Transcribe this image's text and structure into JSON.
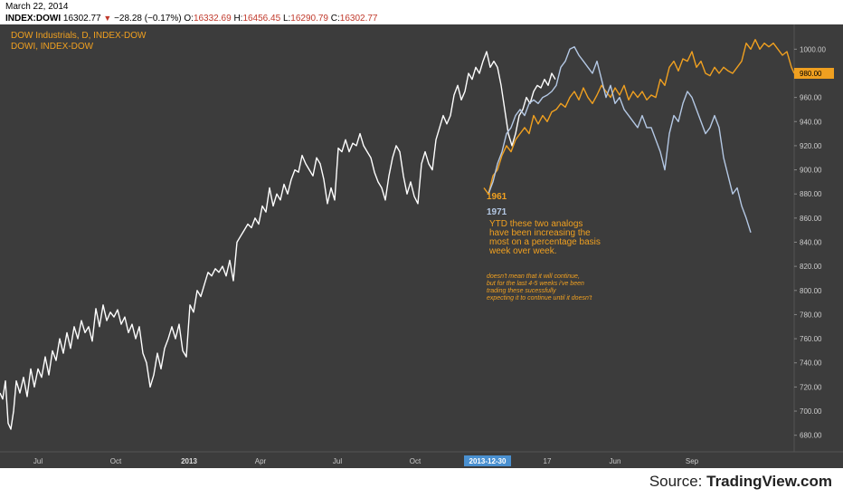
{
  "header": {
    "date": "March 22, 2014",
    "symbol": "INDEX:DOWI",
    "last": "16302.77",
    "change": "−28.28 (−0.17%)",
    "o_label": "O:",
    "o_value": "16332.69",
    "h_label": "H:",
    "h_value": "16456.45",
    "l_label": "L:",
    "l_value": "16290.79",
    "c_label": "C:",
    "c_value": "16302.77"
  },
  "legend": {
    "line1": "DOW Industrials, D, INDEX-DOW",
    "line2": "DOWI, INDEX-DOW"
  },
  "annotations": {
    "label_1961": "1961",
    "label_1971": "1971",
    "note1": [
      "YTD these two analogs",
      "have been increasing the",
      "most on a percentage basis",
      "week over week."
    ],
    "note2": [
      "doesn't mean that it will continue,",
      "but for the last 4-5 weeks i've been",
      "trading these sucessfully",
      "expecting it to continue until it doesn't"
    ]
  },
  "source": {
    "prefix": "Source: ",
    "brand": "TradingView.com"
  },
  "colors": {
    "background": "#3c3c3c",
    "main_series": "#ffffff",
    "series_1961": "#f0a020",
    "series_1971": "#b4c8e4",
    "axis_text": "#cccccc",
    "highlight": "#4a90d0"
  },
  "chart_data": {
    "type": "line",
    "ylim": [
      670,
      1010
    ],
    "y_ticks": [
      680,
      700,
      720,
      740,
      760,
      780,
      800,
      820,
      840,
      860,
      880,
      900,
      920,
      940,
      960,
      980,
      1000
    ],
    "x_ticks": [
      "Jul",
      "Oct",
      "2013",
      "Apr",
      "Jul",
      "Oct",
      "2013-12-30",
      "17",
      "Jun",
      "Sep"
    ],
    "x_ticks_bold": [
      "2013"
    ],
    "x_tick_highlight": "2013-12-30",
    "last_value_label": "980.00",
    "grid": false,
    "series": [
      {
        "name": "DOW Industrials",
        "points": [
          [
            0,
            715
          ],
          [
            3,
            710
          ],
          [
            6,
            725
          ],
          [
            9,
            690
          ],
          [
            12,
            685
          ],
          [
            15,
            700
          ],
          [
            18,
            725
          ],
          [
            22,
            715
          ],
          [
            26,
            728
          ],
          [
            30,
            712
          ],
          [
            34,
            735
          ],
          [
            38,
            720
          ],
          [
            42,
            735
          ],
          [
            46,
            728
          ],
          [
            50,
            745
          ],
          [
            54,
            730
          ],
          [
            58,
            750
          ],
          [
            62,
            742
          ],
          [
            66,
            760
          ],
          [
            70,
            748
          ],
          [
            74,
            765
          ],
          [
            78,
            752
          ],
          [
            82,
            770
          ],
          [
            86,
            760
          ],
          [
            90,
            775
          ],
          [
            94,
            765
          ],
          [
            98,
            770
          ],
          [
            102,
            758
          ],
          [
            106,
            785
          ],
          [
            110,
            770
          ],
          [
            114,
            788
          ],
          [
            118,
            775
          ],
          [
            122,
            782
          ],
          [
            126,
            778
          ],
          [
            130,
            784
          ],
          [
            134,
            772
          ],
          [
            138,
            778
          ],
          [
            142,
            765
          ],
          [
            146,
            772
          ],
          [
            150,
            760
          ],
          [
            154,
            770
          ],
          [
            158,
            748
          ],
          [
            162,
            740
          ],
          [
            166,
            720
          ],
          [
            170,
            730
          ],
          [
            174,
            748
          ],
          [
            178,
            735
          ],
          [
            182,
            752
          ],
          [
            186,
            760
          ],
          [
            190,
            770
          ],
          [
            194,
            760
          ],
          [
            198,
            772
          ],
          [
            202,
            750
          ],
          [
            206,
            745
          ],
          [
            210,
            788
          ],
          [
            214,
            782
          ],
          [
            218,
            800
          ],
          [
            222,
            795
          ],
          [
            226,
            805
          ],
          [
            230,
            815
          ],
          [
            234,
            812
          ],
          [
            238,
            818
          ],
          [
            242,
            815
          ],
          [
            246,
            820
          ],
          [
            250,
            812
          ],
          [
            254,
            825
          ],
          [
            258,
            808
          ],
          [
            262,
            840
          ],
          [
            266,
            845
          ],
          [
            270,
            850
          ],
          [
            274,
            855
          ],
          [
            278,
            852
          ],
          [
            282,
            860
          ],
          [
            286,
            855
          ],
          [
            290,
            870
          ],
          [
            294,
            865
          ],
          [
            298,
            885
          ],
          [
            302,
            870
          ],
          [
            306,
            880
          ],
          [
            310,
            875
          ],
          [
            314,
            888
          ],
          [
            318,
            880
          ],
          [
            322,
            892
          ],
          [
            326,
            900
          ],
          [
            330,
            898
          ],
          [
            334,
            912
          ],
          [
            338,
            905
          ],
          [
            342,
            900
          ],
          [
            346,
            895
          ],
          [
            350,
            910
          ],
          [
            354,
            905
          ],
          [
            358,
            892
          ],
          [
            362,
            872
          ],
          [
            366,
            885
          ],
          [
            370,
            875
          ],
          [
            374,
            918
          ],
          [
            378,
            915
          ],
          [
            382,
            925
          ],
          [
            386,
            915
          ],
          [
            390,
            922
          ],
          [
            394,
            920
          ],
          [
            398,
            930
          ],
          [
            402,
            920
          ],
          [
            406,
            915
          ],
          [
            410,
            910
          ],
          [
            414,
            898
          ],
          [
            418,
            890
          ],
          [
            422,
            885
          ],
          [
            426,
            875
          ],
          [
            430,
            895
          ],
          [
            434,
            910
          ],
          [
            438,
            920
          ],
          [
            442,
            915
          ],
          [
            446,
            895
          ],
          [
            450,
            880
          ],
          [
            454,
            890
          ],
          [
            458,
            878
          ],
          [
            462,
            872
          ],
          [
            466,
            905
          ],
          [
            470,
            915
          ],
          [
            474,
            905
          ],
          [
            478,
            900
          ],
          [
            482,
            925
          ],
          [
            486,
            935
          ],
          [
            490,
            945
          ],
          [
            494,
            938
          ],
          [
            498,
            945
          ],
          [
            502,
            962
          ],
          [
            506,
            970
          ],
          [
            510,
            958
          ],
          [
            514,
            965
          ],
          [
            518,
            980
          ],
          [
            522,
            975
          ],
          [
            526,
            985
          ],
          [
            530,
            980
          ],
          [
            534,
            990
          ],
          [
            538,
            998
          ],
          [
            542,
            985
          ],
          [
            546,
            990
          ],
          [
            550,
            985
          ],
          [
            554,
            970
          ],
          [
            558,
            950
          ],
          [
            562,
            930
          ],
          [
            566,
            920
          ],
          [
            570,
            930
          ],
          [
            574,
            945
          ],
          [
            578,
            950
          ],
          [
            582,
            960
          ],
          [
            586,
            955
          ],
          [
            590,
            965
          ],
          [
            594,
            970
          ],
          [
            598,
            968
          ],
          [
            602,
            975
          ],
          [
            606,
            970
          ],
          [
            610,
            980
          ],
          [
            614,
            975
          ]
        ]
      },
      {
        "name": "1961",
        "points": [
          [
            535,
            885
          ],
          [
            540,
            880
          ],
          [
            545,
            895
          ],
          [
            550,
            900
          ],
          [
            555,
            912
          ],
          [
            560,
            920
          ],
          [
            565,
            915
          ],
          [
            570,
            925
          ],
          [
            575,
            930
          ],
          [
            580,
            935
          ],
          [
            585,
            930
          ],
          [
            590,
            945
          ],
          [
            595,
            938
          ],
          [
            600,
            945
          ],
          [
            605,
            940
          ],
          [
            610,
            948
          ],
          [
            615,
            950
          ],
          [
            620,
            955
          ],
          [
            625,
            952
          ],
          [
            630,
            960
          ],
          [
            635,
            965
          ],
          [
            640,
            958
          ],
          [
            645,
            968
          ],
          [
            650,
            960
          ],
          [
            655,
            955
          ],
          [
            660,
            962
          ],
          [
            665,
            970
          ],
          [
            670,
            965
          ],
          [
            675,
            960
          ],
          [
            680,
            968
          ],
          [
            685,
            962
          ],
          [
            690,
            970
          ],
          [
            695,
            958
          ],
          [
            700,
            965
          ],
          [
            705,
            960
          ],
          [
            710,
            965
          ],
          [
            715,
            958
          ],
          [
            720,
            962
          ],
          [
            725,
            960
          ],
          [
            730,
            975
          ],
          [
            735,
            970
          ],
          [
            740,
            985
          ],
          [
            745,
            990
          ],
          [
            750,
            982
          ],
          [
            755,
            992
          ],
          [
            760,
            990
          ],
          [
            765,
            998
          ],
          [
            770,
            985
          ],
          [
            775,
            990
          ],
          [
            780,
            980
          ],
          [
            785,
            978
          ],
          [
            790,
            985
          ],
          [
            795,
            980
          ],
          [
            800,
            985
          ],
          [
            805,
            982
          ],
          [
            810,
            980
          ],
          [
            815,
            985
          ],
          [
            820,
            990
          ],
          [
            825,
            1005
          ],
          [
            830,
            1000
          ],
          [
            835,
            1008
          ],
          [
            840,
            1000
          ],
          [
            845,
            1005
          ],
          [
            850,
            1002
          ],
          [
            855,
            1005
          ],
          [
            860,
            1000
          ],
          [
            865,
            995
          ],
          [
            870,
            998
          ],
          [
            875,
            985
          ],
          [
            878,
            980
          ]
        ]
      },
      {
        "name": "1971",
        "points": [
          [
            540,
            880
          ],
          [
            545,
            890
          ],
          [
            550,
            905
          ],
          [
            555,
            915
          ],
          [
            560,
            930
          ],
          [
            565,
            935
          ],
          [
            570,
            945
          ],
          [
            575,
            950
          ],
          [
            580,
            945
          ],
          [
            585,
            955
          ],
          [
            590,
            958
          ],
          [
            595,
            955
          ],
          [
            600,
            960
          ],
          [
            605,
            962
          ],
          [
            610,
            965
          ],
          [
            615,
            970
          ],
          [
            620,
            985
          ],
          [
            625,
            990
          ],
          [
            630,
            1000
          ],
          [
            635,
            1002
          ],
          [
            640,
            995
          ],
          [
            645,
            990
          ],
          [
            650,
            985
          ],
          [
            655,
            980
          ],
          [
            660,
            990
          ],
          [
            665,
            975
          ],
          [
            670,
            960
          ],
          [
            675,
            970
          ],
          [
            680,
            955
          ],
          [
            685,
            960
          ],
          [
            690,
            950
          ],
          [
            695,
            945
          ],
          [
            700,
            940
          ],
          [
            705,
            935
          ],
          [
            710,
            945
          ],
          [
            715,
            935
          ],
          [
            720,
            935
          ],
          [
            725,
            925
          ],
          [
            730,
            915
          ],
          [
            735,
            900
          ],
          [
            740,
            930
          ],
          [
            745,
            945
          ],
          [
            750,
            940
          ],
          [
            755,
            955
          ],
          [
            760,
            965
          ],
          [
            765,
            960
          ],
          [
            770,
            950
          ],
          [
            775,
            940
          ],
          [
            780,
            930
          ],
          [
            785,
            935
          ],
          [
            790,
            945
          ],
          [
            795,
            935
          ],
          [
            800,
            910
          ],
          [
            805,
            895
          ],
          [
            810,
            880
          ],
          [
            815,
            885
          ],
          [
            820,
            870
          ],
          [
            825,
            860
          ],
          [
            830,
            848
          ]
        ]
      }
    ]
  }
}
